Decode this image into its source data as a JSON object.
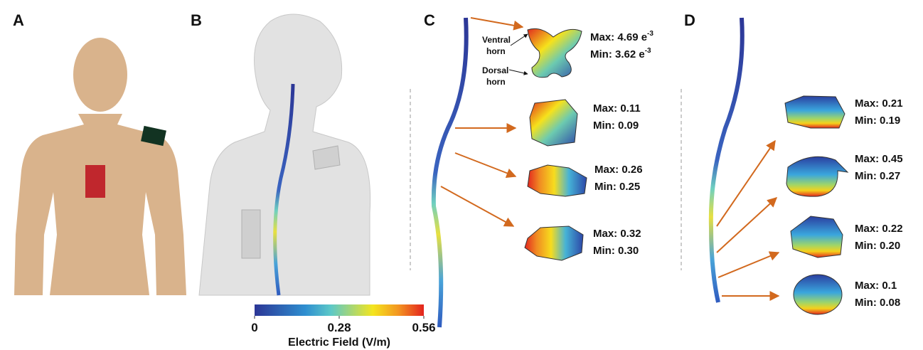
{
  "panel_labels": [
    "A",
    "B",
    "C",
    "D"
  ],
  "panel_c": {
    "ventral_horn": [
      "Ventral",
      "horn"
    ],
    "dorsal_horn": [
      "Dorsal",
      "horn"
    ],
    "sections": [
      {
        "max": "Max: 4.69 e",
        "max_sup": "-3",
        "min": "Min: 3.62 e",
        "min_sup": "-3"
      },
      {
        "max": "Max: 0.11",
        "min": "Min: 0.09"
      },
      {
        "max": "Max: 0.26",
        "min": "Min: 0.25"
      },
      {
        "max": "Max: 0.32",
        "min": "Min: 0.30"
      }
    ]
  },
  "panel_d": {
    "sections": [
      {
        "max": "Max: 0.21",
        "min": "Min: 0.19"
      },
      {
        "max": "Max: 0.45",
        "min": "Min: 0.27"
      },
      {
        "max": "Max: 0.22",
        "min": "Min: 0.20"
      },
      {
        "max": "Max: 0.1",
        "min": "Min: 0.08"
      }
    ]
  },
  "colorbar": {
    "ticks": [
      0,
      0.28,
      0.56
    ],
    "title": "Electric Field (V/m)"
  }
}
